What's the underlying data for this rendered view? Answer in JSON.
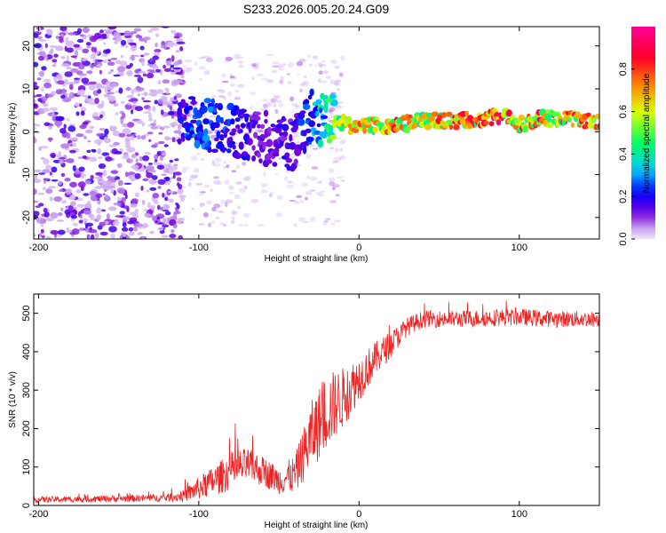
{
  "chart_data": [
    {
      "type": "heatmap",
      "title": "S233.2026.005.20.24.G09",
      "xlabel": "Height of straight line (km)",
      "ylabel": "Frequency (Hz)",
      "xlim": [
        -203,
        150
      ],
      "ylim": [
        -25,
        24.5
      ],
      "xticks": [
        -200,
        -100,
        0,
        100
      ],
      "xtick_labels": [
        "-200",
        "-100",
        "0",
        "100"
      ],
      "yticks": [
        20,
        10,
        0,
        -10,
        -20
      ],
      "ytick_labels": [
        "20",
        "10",
        "0",
        "-10",
        "-20"
      ],
      "colorbar": {
        "label": "Normalized spectral amplitude",
        "range": [
          0,
          1
        ],
        "ticks": [
          0.0,
          0.2,
          0.4,
          0.6,
          0.8
        ],
        "tick_labels": [
          "0.0",
          "0.2",
          "0.4",
          "0.6",
          "0.8"
        ]
      },
      "ridge": [
        {
          "x": -110,
          "f": 2.5,
          "a": 0.25
        },
        {
          "x": -95,
          "f": 1.5,
          "a": 0.3
        },
        {
          "x": -80,
          "f": 0.5,
          "a": 0.25
        },
        {
          "x": -60,
          "f": -1.5,
          "a": 0.15
        },
        {
          "x": -40,
          "f": -3.0,
          "a": 0.2
        },
        {
          "x": -30,
          "f": 3.5,
          "a": 0.3
        },
        {
          "x": -20,
          "f": 3.0,
          "a": 0.45
        },
        {
          "x": -10,
          "f": 2.0,
          "a": 0.7
        },
        {
          "x": 0,
          "f": 1.0,
          "a": 0.8
        },
        {
          "x": 10,
          "f": 1.5,
          "a": 0.75
        },
        {
          "x": 20,
          "f": 1.5,
          "a": 0.8
        },
        {
          "x": 40,
          "f": 2.5,
          "a": 0.7
        },
        {
          "x": 60,
          "f": 2.5,
          "a": 0.85
        },
        {
          "x": 80,
          "f": 3.0,
          "a": 0.85
        },
        {
          "x": 90,
          "f": 4.0,
          "a": 0.9
        },
        {
          "x": 100,
          "f": 1.5,
          "a": 0.8
        },
        {
          "x": 110,
          "f": 3.0,
          "a": 0.85
        },
        {
          "x": 130,
          "f": 3.0,
          "a": 0.85
        },
        {
          "x": 150,
          "f": 2.5,
          "a": 0.85
        }
      ]
    },
    {
      "type": "line",
      "xlabel": "Height of straight line (km)",
      "ylabel": "SNR (10 * v/v)",
      "xlim": [
        -203,
        150
      ],
      "ylim": [
        0,
        550
      ],
      "xticks": [
        -200,
        -100,
        0,
        100
      ],
      "xtick_labels": [
        "-200",
        "-100",
        "0",
        "100"
      ],
      "yticks": [
        0,
        100,
        200,
        300,
        400,
        500
      ],
      "ytick_labels": [
        "0",
        "100",
        "200",
        "300",
        "400",
        "500"
      ],
      "series": [
        {
          "name": "SNR",
          "color": "#ee2222",
          "x": [
            -203,
            -180,
            -150,
            -120,
            -110,
            -100,
            -90,
            -80,
            -70,
            -60,
            -50,
            -40,
            -30,
            -20,
            -10,
            0,
            10,
            20,
            30,
            40,
            60,
            80,
            100,
            120,
            150
          ],
          "mean": [
            15,
            16,
            18,
            20,
            25,
            45,
            65,
            90,
            105,
            90,
            65,
            80,
            180,
            245,
            280,
            330,
            380,
            420,
            465,
            485,
            485,
            488,
            490,
            485,
            485
          ],
          "noise": [
            8,
            8,
            9,
            10,
            15,
            30,
            40,
            50,
            45,
            40,
            35,
            50,
            90,
            100,
            80,
            60,
            45,
            35,
            25,
            22,
            22,
            22,
            22,
            22,
            20
          ]
        }
      ]
    }
  ]
}
